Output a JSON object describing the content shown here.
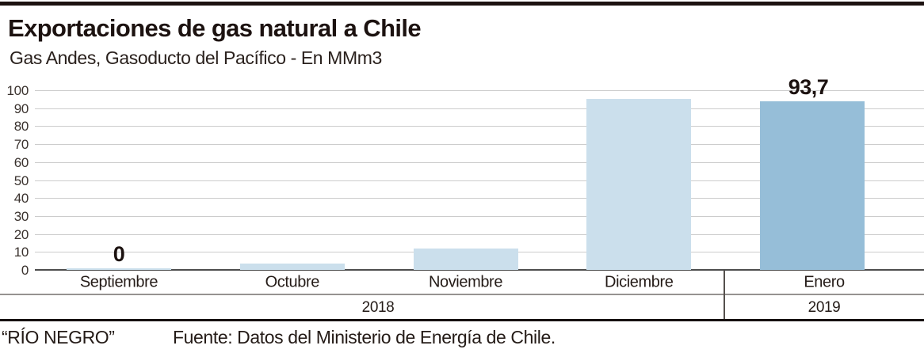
{
  "header": {
    "title": "Exportaciones de gas natural a Chile",
    "subtitle": "Gas Andes, Gasoducto del Pacífico - En MMm3"
  },
  "footer": {
    "credit": "“RÍO NEGRO”",
    "source": "Fuente: Datos del Ministerio de Energía de Chile."
  },
  "chart_data": {
    "type": "bar",
    "title": "Exportaciones de gas natural a Chile",
    "subtitle": "Gas Andes, Gasoducto del Pacífico - En MMm3",
    "unit": "MMm3",
    "categories": [
      "Septiembre",
      "Octubre",
      "Noviembre",
      "Diciembre",
      "Enero"
    ],
    "values": [
      0.5,
      3.5,
      12,
      95,
      93.7
    ],
    "value_labels": [
      {
        "category_index": 0,
        "text": "0"
      },
      {
        "category_index": 4,
        "text": "93,7"
      }
    ],
    "year_groups": [
      {
        "label": "2018",
        "categories": [
          "Septiembre",
          "Octubre",
          "Noviembre",
          "Diciembre"
        ]
      },
      {
        "label": "2019",
        "categories": [
          "Enero"
        ]
      }
    ],
    "y_ticks": [
      0,
      10,
      20,
      30,
      40,
      50,
      60,
      70,
      80,
      90,
      100
    ],
    "ylim": [
      0,
      100
    ],
    "grid": true,
    "legend": "none",
    "bar_colors": [
      "#cbdfec",
      "#cbdfec",
      "#cbdfec",
      "#cbdfec",
      "#96bed8"
    ],
    "colors": {
      "bar_light": "#cbdfec",
      "bar_dark": "#96bed8",
      "gridline": "#cccccc",
      "axis_baseline": "#4d4d4d",
      "text": "#221814"
    }
  }
}
